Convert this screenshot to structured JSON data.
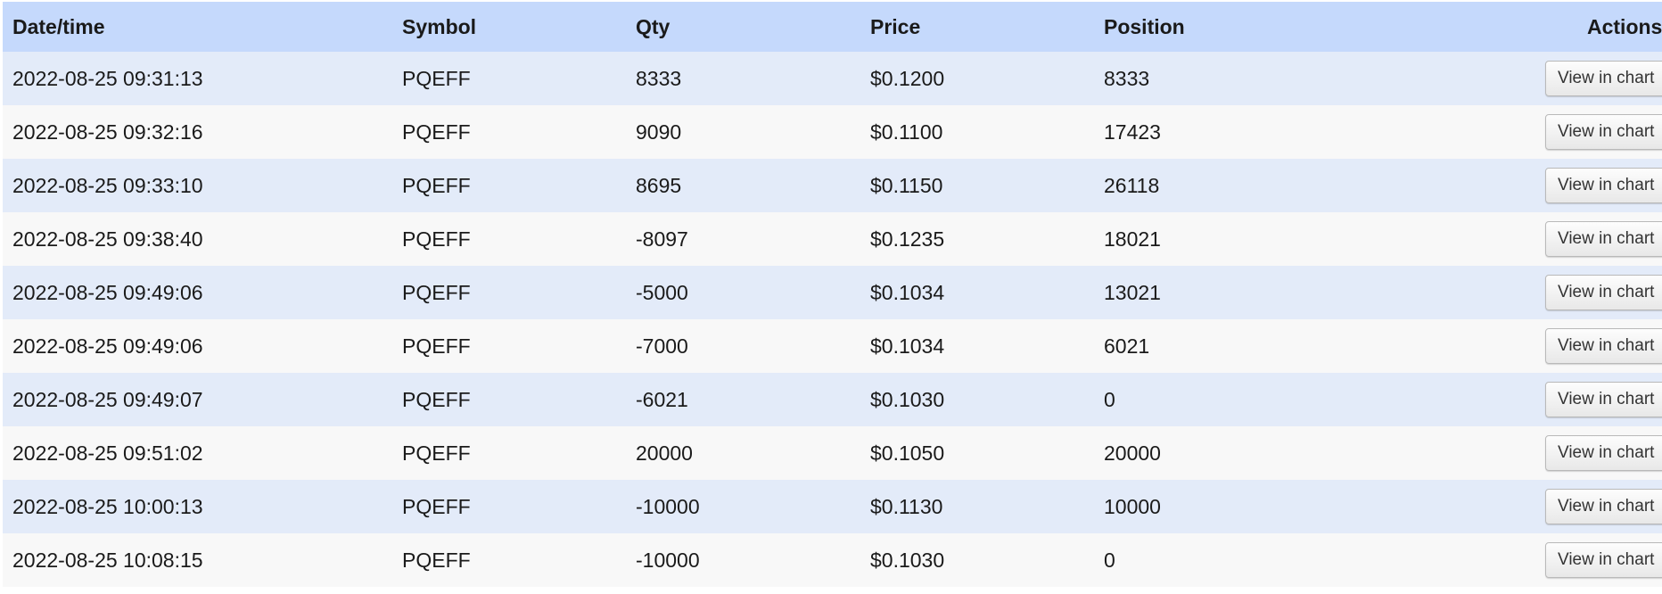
{
  "table": {
    "headers": [
      "Date/time",
      "Symbol",
      "Qty",
      "Price",
      "Position",
      "Actions"
    ],
    "action_label": "View in chart",
    "rows": [
      [
        "2022-08-25 09:31:13",
        "PQEFF",
        "8333",
        "$0.1200",
        "8333"
      ],
      [
        "2022-08-25 09:32:16",
        "PQEFF",
        "9090",
        "$0.1100",
        "17423"
      ],
      [
        "2022-08-25 09:33:10",
        "PQEFF",
        "8695",
        "$0.1150",
        "26118"
      ],
      [
        "2022-08-25 09:38:40",
        "PQEFF",
        "-8097",
        "$0.1235",
        "18021"
      ],
      [
        "2022-08-25 09:49:06",
        "PQEFF",
        "-5000",
        "$0.1034",
        "13021"
      ],
      [
        "2022-08-25 09:49:06",
        "PQEFF",
        "-7000",
        "$0.1034",
        "6021"
      ],
      [
        "2022-08-25 09:49:07",
        "PQEFF",
        "-6021",
        "$0.1030",
        "0"
      ],
      [
        "2022-08-25 09:51:02",
        "PQEFF",
        "20000",
        "$0.1050",
        "20000"
      ],
      [
        "2022-08-25 10:00:13",
        "PQEFF",
        "-10000",
        "$0.1130",
        "10000"
      ],
      [
        "2022-08-25 10:08:15",
        "PQEFF",
        "-10000",
        "$0.1030",
        "0"
      ]
    ]
  },
  "colors": {
    "header_bg": "#c5d9fc",
    "row_alt": "#e3ebf9",
    "row": "#f8f8f8"
  }
}
